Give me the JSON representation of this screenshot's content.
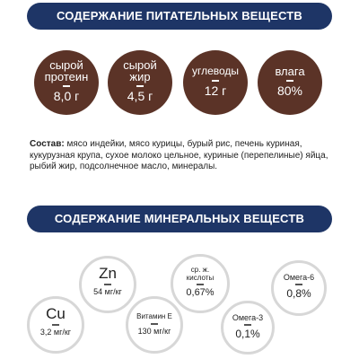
{
  "nutrients": {
    "title": "СОДЕРЖАНИЕ ПИТАТЕЛЬНЫХ ВЕЩЕСТВ",
    "items": [
      {
        "label": "сырой\nпротеин",
        "value": "8,0 г"
      },
      {
        "label": "сырой\nжир",
        "value": "4,5 г"
      },
      {
        "label": "углеводы",
        "value": "12 г"
      },
      {
        "label": "влага",
        "value": "80%"
      }
    ]
  },
  "composition": {
    "label": "Состав:",
    "text": " мясо индейки, мясо курицы, бурый рис, печень куриная, кукурузная крупа, сухое молоко цельное, куриные (перепелиные) яйца, рыбий жир, подсолнечное масло, минералы."
  },
  "minerals": {
    "title": "СОДЕРЖАНИЕ МИНЕРАЛЬНЫХ ВЕЩЕСТВ",
    "items": [
      {
        "label": "Zn",
        "value": "54 мг/кг"
      },
      {
        "label": "Cu",
        "value": "3,2 мг/кг"
      },
      {
        "label": "Витамин E",
        "value": "130 мг/кг"
      },
      {
        "label": "ср. ж.\nкислоты",
        "value": "0,67%"
      },
      {
        "label": "Омега-3",
        "value": "0,1%"
      },
      {
        "label": "Омега-6",
        "value": "0,8%"
      }
    ]
  }
}
